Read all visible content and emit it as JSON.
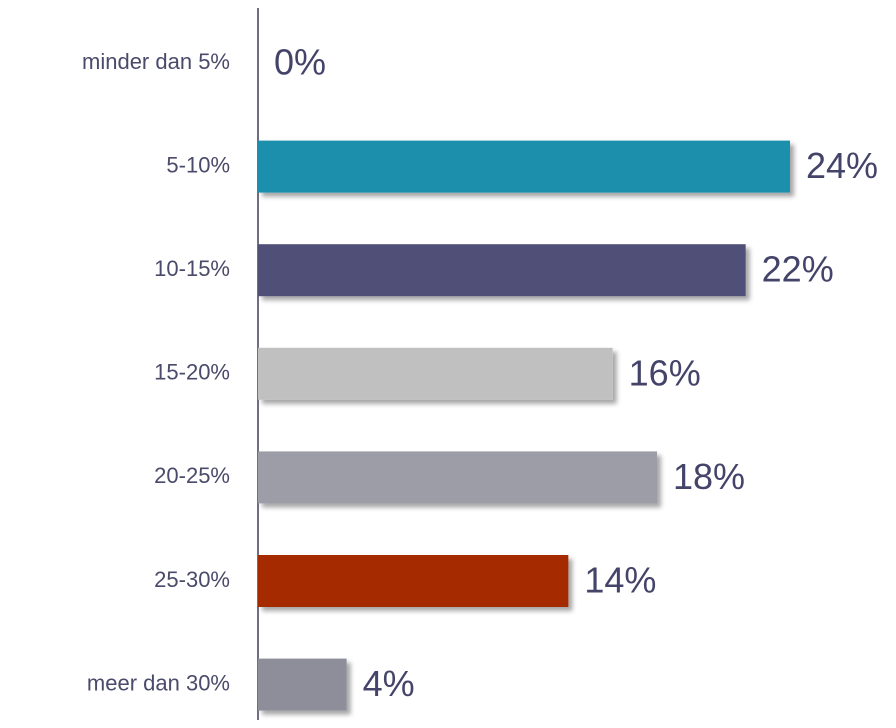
{
  "chart_data": {
    "type": "bar",
    "orientation": "horizontal",
    "categories": [
      "minder dan 5%",
      "5-10%",
      "10-15%",
      "15-20%",
      "20-25%",
      "25-30%",
      "meer dan 30%"
    ],
    "values": [
      0,
      24,
      22,
      16,
      18,
      14,
      4
    ],
    "value_labels": [
      "0%",
      "24%",
      "22%",
      "16%",
      "18%",
      "14%",
      "4%"
    ],
    "colors": [
      "#1f8fad",
      "#1f8fad",
      "#4f4f78",
      "#c0c0c0",
      "#9d9da8",
      "#a52a04",
      "#8e8e9a"
    ]
  }
}
